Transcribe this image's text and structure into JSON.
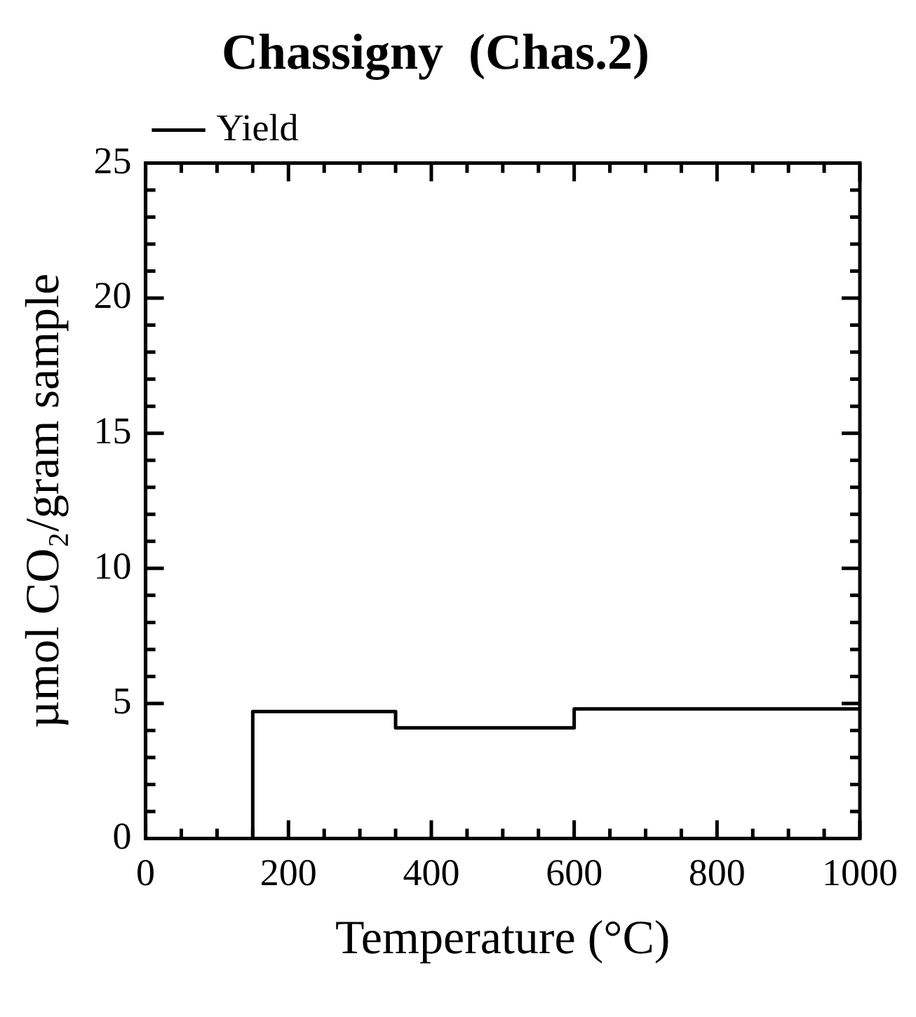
{
  "chart_data": {
    "type": "step",
    "title": "Chassigny  (Chas.2)",
    "xlabel": "Temperature (°C)",
    "ylabel": "µmol CO₂/gram sample",
    "x": [
      0,
      150,
      350,
      600,
      1000
    ],
    "series": [
      {
        "name": "Yield",
        "color": "#000000",
        "values": [
          0,
          4.7,
          4.1,
          4.8,
          4.8
        ]
      }
    ],
    "xlim": [
      0,
      1000
    ],
    "ylim": [
      0,
      25
    ],
    "xticks": [
      0,
      {
        "value": 50,
        "label": null
      },
      {
        "value": 100,
        "label": null
      },
      {
        "value": 150,
        "label": null
      },
      200,
      {
        "value": 250,
        "label": null
      },
      {
        "value": 300,
        "label": null
      },
      {
        "value": 350,
        "label": null
      },
      400,
      {
        "value": 450,
        "label": null
      },
      {
        "value": 500,
        "label": null
      },
      {
        "value": 550,
        "label": null
      },
      600,
      {
        "value": 650,
        "label": null
      },
      {
        "value": 700,
        "label": null
      },
      {
        "value": 750,
        "label": null
      },
      800,
      {
        "value": 850,
        "label": null
      },
      {
        "value": 900,
        "label": null
      },
      {
        "value": 950,
        "label": null
      },
      1000
    ],
    "yticks": [
      0,
      {
        "value": 1,
        "label": null
      },
      {
        "value": 2,
        "label": null
      },
      {
        "value": 3,
        "label": null
      },
      {
        "value": 4,
        "label": null
      },
      5,
      {
        "value": 6,
        "label": null
      },
      {
        "value": 7,
        "label": null
      },
      {
        "value": 8,
        "label": null
      },
      {
        "value": 9,
        "label": null
      },
      10,
      {
        "value": 11,
        "label": null
      },
      {
        "value": 12,
        "label": null
      },
      {
        "value": 13,
        "label": null
      },
      {
        "value": 14,
        "label": null
      },
      15,
      {
        "value": 16,
        "label": null
      },
      {
        "value": 17,
        "label": null
      },
      {
        "value": 18,
        "label": null
      },
      {
        "value": 19,
        "label": null
      },
      20,
      {
        "value": 21,
        "label": null
      },
      {
        "value": 22,
        "label": null
      },
      {
        "value": 23,
        "label": null
      },
      {
        "value": 24,
        "label": null
      },
      25
    ],
    "legend": "top left",
    "grid": false,
    "line_style": "solid",
    "marker": "none"
  }
}
